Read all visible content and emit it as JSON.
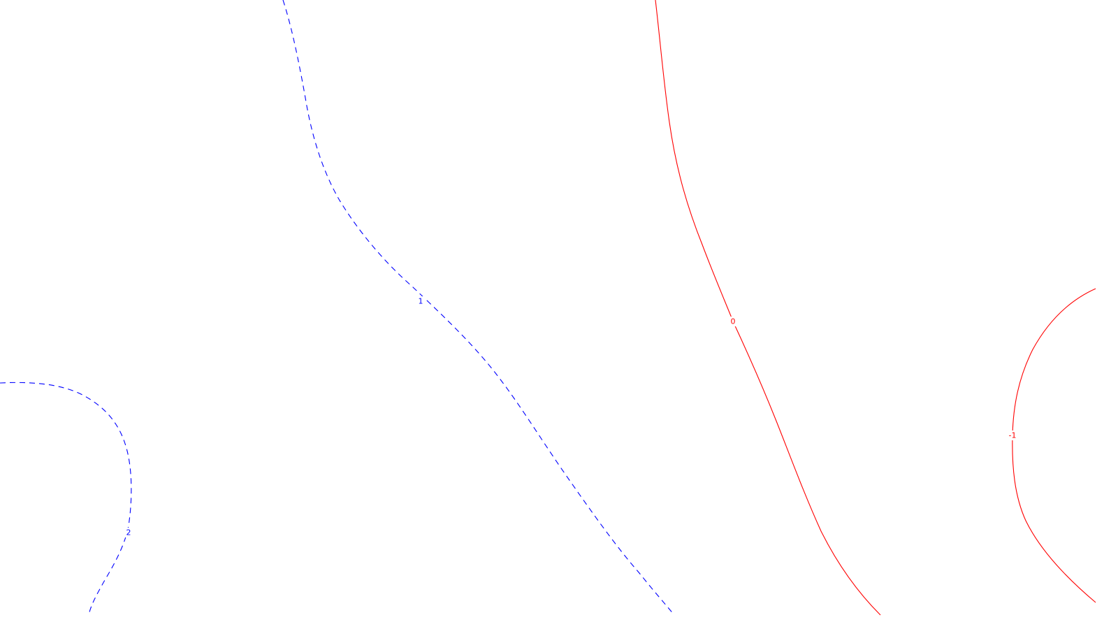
{
  "chart_data": {
    "type": "contour",
    "title": "",
    "xlabel": "",
    "ylabel": "",
    "grid": false,
    "levels": [
      {
        "value": 2,
        "label": "2",
        "color": "#0000ff",
        "style": "dashed"
      },
      {
        "value": 1,
        "label": "1",
        "color": "#0000ff",
        "style": "dashed"
      },
      {
        "value": 0,
        "label": "0",
        "color": "#ff0000",
        "style": "solid"
      },
      {
        "value": -1,
        "label": "-1",
        "color": "#ff0000",
        "style": "solid"
      }
    ]
  }
}
